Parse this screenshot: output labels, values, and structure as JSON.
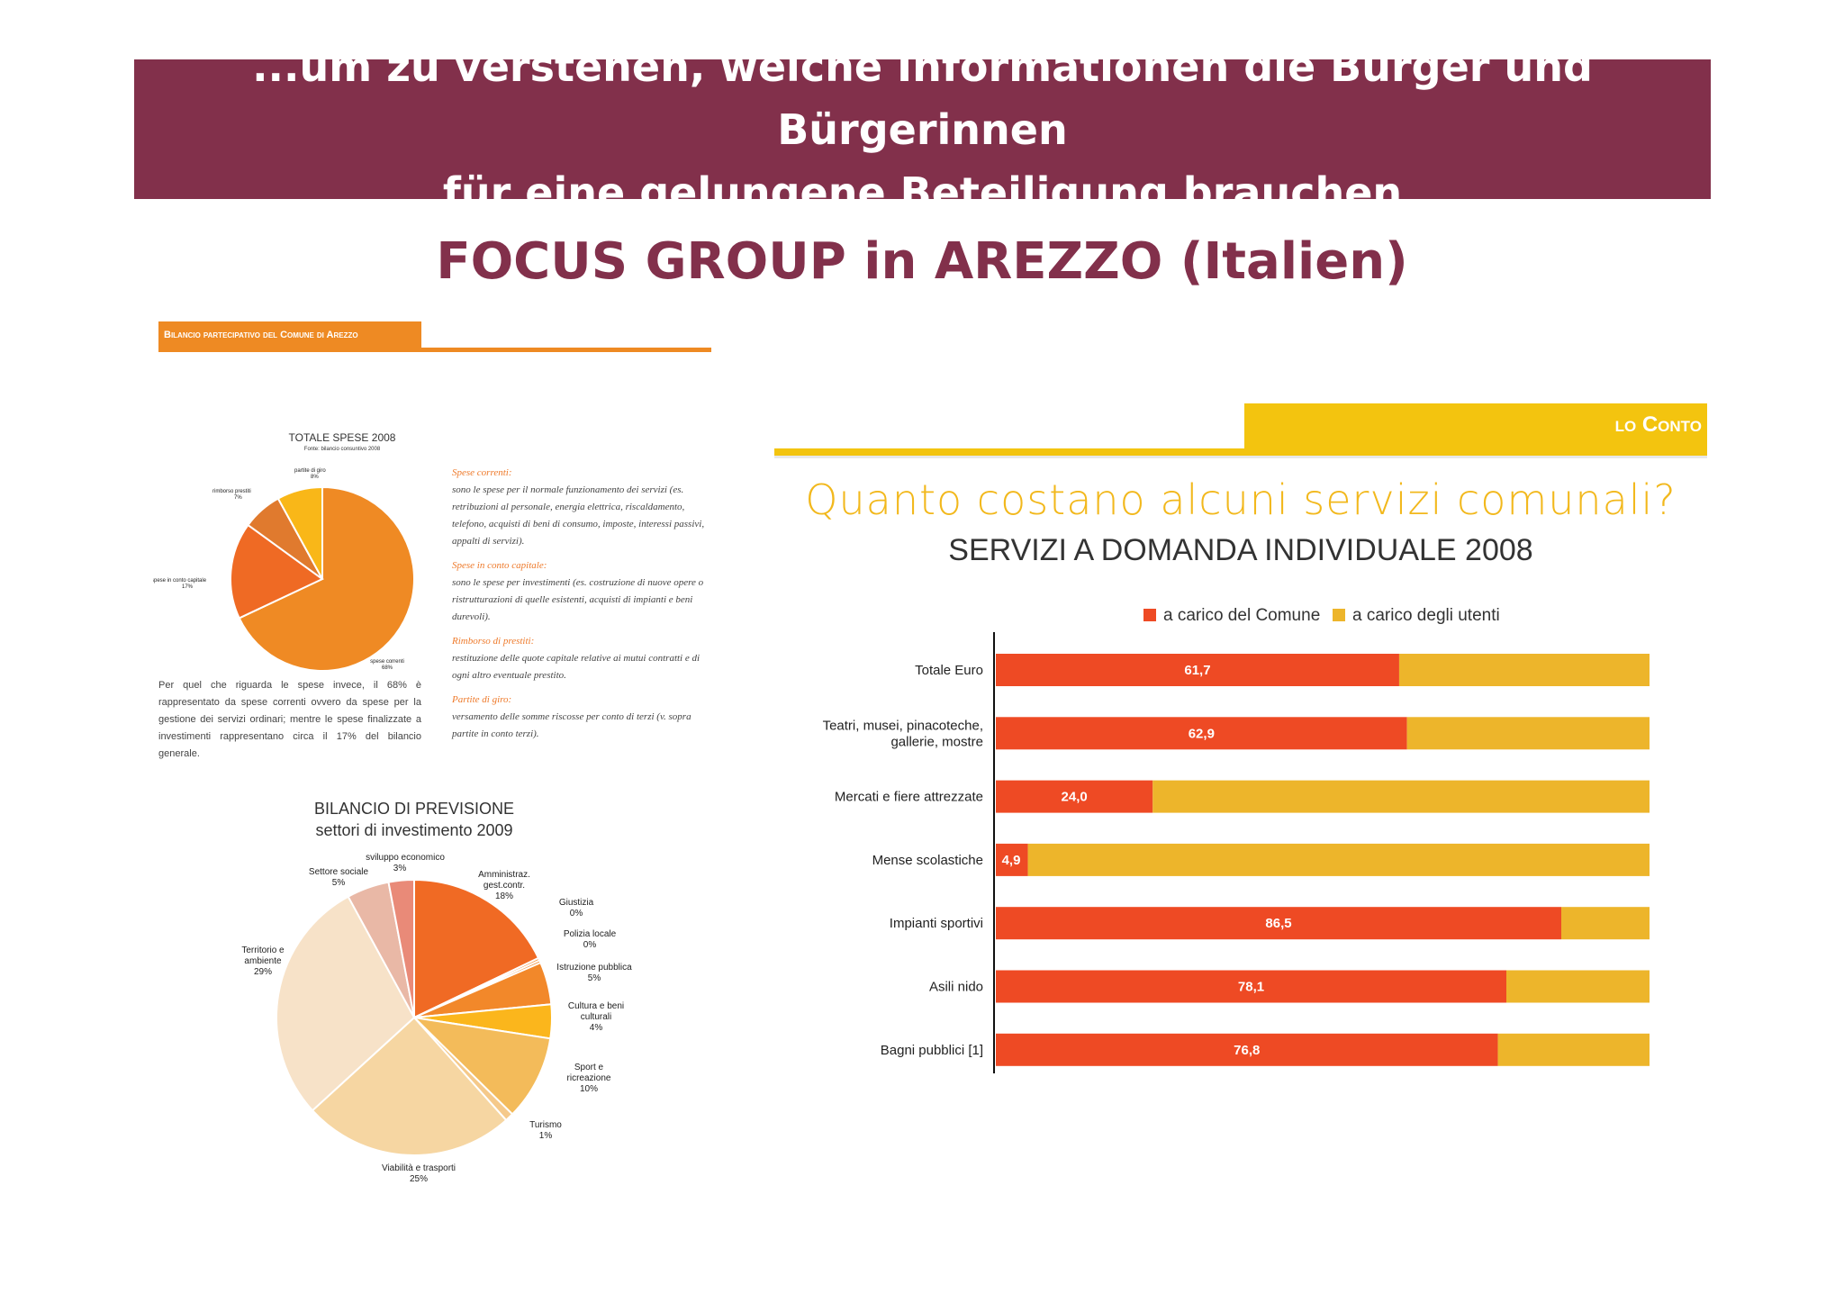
{
  "banner": {
    "line1": "...um zu verstehen, welche Informationen die Bürger und Bürgerinnen",
    "line2": "für eine gelungene Beteiligung brauchen"
  },
  "subtitle": "FOCUS GROUP in AREZZO (Italien)",
  "left_doc": {
    "header": "Bilancio partecipativo del Comune di Arezzo",
    "notes": [
      {
        "head": "Spese correnti:",
        "text": "sono le spese per il normale funzionamento dei servizi (es. retribuzioni al personale, energia elettrica, riscaldamento, telefono, acquisti di beni di consumo, imposte, interessi passivi, appalti di servizi)."
      },
      {
        "head": "Spese in conto capitale:",
        "text": "sono le spese per investimenti (es. costruzione di nuove opere o ristrutturazioni di quelle esistenti, acquisti di impianti e beni durevoli)."
      },
      {
        "head": "Rimborso di prestiti:",
        "text": "restituzione delle quote capitale relative ai mutui contratti e di ogni altro eventuale prestito."
      },
      {
        "head": "Partite di giro:",
        "text": "versamento delle somme riscosse per conto di terzi (v. sopra partite in conto terzi)."
      }
    ],
    "paragraph": "Per quel che riguarda le spese invece, il 68% è rappresentato da spese correnti ovvero da spese per la gestione dei servizi ordinari; mentre le spese finalizzate a investimenti rappresentano circa il 17% del bilancio generale."
  },
  "right_doc": {
    "section_label": "lo Conto",
    "question_title": "Quanto costano alcuni servizi comunali?"
  },
  "chart_data": [
    {
      "type": "pie",
      "title": "TOTALE SPESE 2008",
      "subtitle": "Fonte: bilancio consuntivo 2008",
      "slices": [
        {
          "label": "spese correnti",
          "value": 68,
          "display": "68%",
          "color": "#ef8a24"
        },
        {
          "label": "spese in conto capitale",
          "value": 17,
          "display": "17%",
          "color": "#ef6a24"
        },
        {
          "label": "rimborso prestiti",
          "value": 7,
          "display": "7%",
          "color": "#e07a2e"
        },
        {
          "label": "partite di giro",
          "value": 8,
          "display": "8%",
          "color": "#f9b718"
        }
      ]
    },
    {
      "type": "pie",
      "title": "BILANCIO DI PREVISIONE",
      "subtitle": "settori di investimento 2009",
      "slices": [
        {
          "label": "Amministraz. gest.contr.",
          "value": 18,
          "display": "18%",
          "color": "#f06a24"
        },
        {
          "label": "Giustizia",
          "value": 0.3,
          "display": "0%",
          "color": "#f08a30"
        },
        {
          "label": "Polizia locale",
          "value": 0.3,
          "display": "0%",
          "color": "#f08a30"
        },
        {
          "label": "Istruzione pubblica",
          "value": 5,
          "display": "5%",
          "color": "#f2882a"
        },
        {
          "label": "Cultura e beni culturali",
          "value": 4,
          "display": "4%",
          "color": "#fbb61c"
        },
        {
          "label": "Sport e ricreazione",
          "value": 10,
          "display": "10%",
          "color": "#f3bb5a"
        },
        {
          "label": "Turismo",
          "value": 1,
          "display": "1%",
          "color": "#f5c98a"
        },
        {
          "label": "Viabilità e trasporti",
          "value": 25,
          "display": "25%",
          "color": "#f6d6a2"
        },
        {
          "label": "Territorio e ambiente",
          "value": 29,
          "display": "29%",
          "color": "#f7e2c8"
        },
        {
          "label": "Settore sociale",
          "value": 5,
          "display": "5%",
          "color": "#e9b8a6"
        },
        {
          "label": "sviluppo economico",
          "value": 3,
          "display": "3%",
          "color": "#e98a78"
        }
      ]
    },
    {
      "type": "bar",
      "orientation": "horizontal",
      "stacked": true,
      "title": "SERVIZI A DOMANDA INDIVIDUALE 2008",
      "categories": [
        "Totale Euro",
        "Teatri, musei, pinacoteche, gallerie, mostre",
        "Mercati e fiere attrezzate",
        "Mense scolastiche",
        "Impianti sportivi",
        "Asili nido",
        "Bagni pubblici [1]"
      ],
      "series": [
        {
          "name": "a carico del Comune",
          "color": "#ee4a24",
          "values": [
            61.7,
            62.9,
            24.0,
            4.9,
            86.5,
            78.1,
            76.8
          ],
          "labels": [
            "61,7",
            "62,9",
            "24,0",
            "4,9",
            "86,5",
            "78,1",
            "76,8"
          ]
        },
        {
          "name": "a carico degli utenti",
          "color": "#edb52b",
          "values": [
            38.3,
            37.1,
            76.0,
            95.1,
            13.5,
            21.9,
            23.2
          ]
        }
      ],
      "xlim": [
        0,
        100
      ],
      "legend_position": "top"
    }
  ]
}
